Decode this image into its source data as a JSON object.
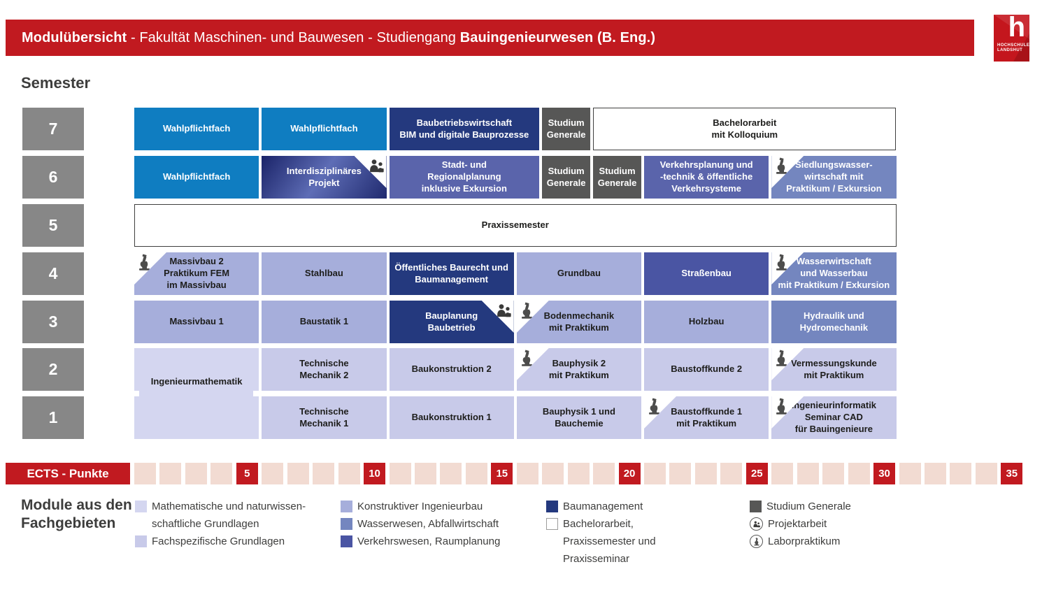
{
  "header": {
    "title_prefix": "Modulübersicht",
    "title_middle": " - Fakultät Maschinen- und Bauwesen - Studiengang ",
    "title_suffix": "Bauingenieurwesen (B. Eng.)"
  },
  "logo": {
    "letter": "h",
    "text": "HOCHSCHULE\nLANDSHUT"
  },
  "semester_heading": "Semester",
  "semesters": [
    7,
    6,
    5,
    4,
    3,
    2,
    1
  ],
  "colors": {
    "red": "#c11a20",
    "pink": "#f2dbd2",
    "semester_gray": "#878787",
    "studium": "#575756",
    "wahlpflicht": "#0f7dc1",
    "baumanagement": "#24397e",
    "raumplanung": "#5a64ab",
    "verkehr": "#4a55a3",
    "wasser": "#7486bf",
    "konstruktiv": "#a6aedb",
    "fachspez": "#c8cae9",
    "mathe": "#d4d6f0",
    "projekt_gradient": "linear-gradient(125deg, #1a2368 0%, #5e6db6 48%, #202a6f 100%)",
    "whitebox_border": "#3f3f3e",
    "text_dark": "#1d1d1b",
    "icon_gray": "#4d4d4c"
  },
  "modules": [
    {
      "sem": 7,
      "start": 0,
      "span": 5,
      "cat": "wahlpflicht",
      "label": "Wahlpflichtfach"
    },
    {
      "sem": 7,
      "start": 5,
      "span": 5,
      "cat": "wahlpflicht",
      "label": "Wahlpflichtfach"
    },
    {
      "sem": 7,
      "start": 10,
      "span": 6,
      "cat": "baumanagement",
      "label": "Baubetriebswirtschaft\nBIM und digitale Bauprozesse"
    },
    {
      "sem": 7,
      "start": 16,
      "span": 2,
      "cat": "studium",
      "label": "Studium\nGenerale"
    },
    {
      "sem": 7,
      "start": 18,
      "span": 12,
      "cat": "whitebox",
      "label": "Bachelorarbeit\nmit Kolloquium"
    },
    {
      "sem": 6,
      "start": 0,
      "span": 5,
      "cat": "wahlpflicht",
      "label": "Wahlpflichtfach"
    },
    {
      "sem": 6,
      "start": 5,
      "span": 5,
      "cat": "projekt",
      "label": "Interdisziplinäres\nProjekt",
      "icon": "project",
      "icon_pos": "right"
    },
    {
      "sem": 6,
      "start": 10,
      "span": 6,
      "cat": "raumplanung",
      "label": "Stadt- und\nRegionalplanung\ninklusive Exkursion"
    },
    {
      "sem": 6,
      "start": 16,
      "span": 2,
      "cat": "studium",
      "label": "Studium\nGenerale"
    },
    {
      "sem": 6,
      "start": 18,
      "span": 2,
      "cat": "studium",
      "label": "Studium\nGenerale"
    },
    {
      "sem": 6,
      "start": 20,
      "span": 5,
      "cat": "raumplanung",
      "label": "Verkehrsplanung und\n-technik & öffentliche\nVerkehrsysteme"
    },
    {
      "sem": 6,
      "start": 25,
      "span": 5,
      "cat": "wasser",
      "label": "Siedlungswasser-\nwirtschaft mit\nPraktikum / Exkursion",
      "icon": "lab",
      "icon_pos": "left"
    },
    {
      "sem": 5,
      "start": 0,
      "span": 30,
      "cat": "whitebox",
      "label": "Praxissemester"
    },
    {
      "sem": 4,
      "start": 0,
      "span": 5,
      "cat": "konstruktiv",
      "label": "Massivbau 2\nPraktikum FEM\nim Massivbau",
      "icon": "lab",
      "icon_pos": "left"
    },
    {
      "sem": 4,
      "start": 5,
      "span": 5,
      "cat": "konstruktiv",
      "label": "Stahlbau"
    },
    {
      "sem": 4,
      "start": 10,
      "span": 5,
      "cat": "baumanagement",
      "label": "Öffentliches Baurecht und\nBaumanagement"
    },
    {
      "sem": 4,
      "start": 15,
      "span": 5,
      "cat": "konstruktiv",
      "label": "Grundbau"
    },
    {
      "sem": 4,
      "start": 20,
      "span": 5,
      "cat": "verkehr",
      "label": "Straßenbau"
    },
    {
      "sem": 4,
      "start": 25,
      "span": 5,
      "cat": "wasser",
      "label": "Wasserwirtschaft\nund Wasserbau\nmit Praktikum / Exkursion",
      "icon": "lab",
      "icon_pos": "left"
    },
    {
      "sem": 3,
      "start": 0,
      "span": 5,
      "cat": "konstruktiv",
      "label": "Massivbau 1"
    },
    {
      "sem": 3,
      "start": 5,
      "span": 5,
      "cat": "konstruktiv",
      "label": "Baustatik 1"
    },
    {
      "sem": 3,
      "start": 10,
      "span": 5,
      "cat": "baumanagement",
      "label": "Bauplanung\nBaubetrieb",
      "icon": "project",
      "icon_pos": "right"
    },
    {
      "sem": 3,
      "start": 15,
      "span": 5,
      "cat": "konstruktiv",
      "label": "Bodenmechanik\nmit Praktikum",
      "icon": "lab",
      "icon_pos": "left"
    },
    {
      "sem": 3,
      "start": 20,
      "span": 5,
      "cat": "konstruktiv",
      "label": "Holzbau"
    },
    {
      "sem": 3,
      "start": 25,
      "span": 5,
      "cat": "wasser",
      "label": "Hydraulik und\nHydromechanik"
    },
    {
      "sem": 2,
      "start": 0,
      "span": 5,
      "cat": "mathe",
      "label": "Ingenieurmathematik",
      "rows": 2
    },
    {
      "sem": 2,
      "start": 5,
      "span": 5,
      "cat": "fachspez",
      "label": "Technische\nMechanik 2"
    },
    {
      "sem": 2,
      "start": 10,
      "span": 5,
      "cat": "fachspez",
      "label": "Baukonstruktion 2"
    },
    {
      "sem": 2,
      "start": 15,
      "span": 5,
      "cat": "fachspez",
      "label": "Bauphysik 2\nmit Praktikum",
      "icon": "lab",
      "icon_pos": "left"
    },
    {
      "sem": 2,
      "start": 20,
      "span": 5,
      "cat": "fachspez",
      "label": "Baustoffkunde 2"
    },
    {
      "sem": 2,
      "start": 25,
      "span": 5,
      "cat": "fachspez",
      "label": "Vermessungskunde\nmit Praktikum",
      "icon": "lab",
      "icon_pos": "left"
    },
    {
      "sem": 1,
      "start": 5,
      "span": 5,
      "cat": "fachspez",
      "label": "Technische\nMechanik 1"
    },
    {
      "sem": 1,
      "start": 10,
      "span": 5,
      "cat": "fachspez",
      "label": "Baukonstruktion 1"
    },
    {
      "sem": 1,
      "start": 15,
      "span": 5,
      "cat": "fachspez",
      "label": "Bauphysik 1 und\nBauchemie"
    },
    {
      "sem": 1,
      "start": 20,
      "span": 5,
      "cat": "fachspez",
      "label": "Baustoffkunde 1\nmit Praktikum",
      "icon": "lab",
      "icon_pos": "left"
    },
    {
      "sem": 1,
      "start": 25,
      "span": 5,
      "cat": "fachspez",
      "label": "Ingenieurinformatik\nSeminar CAD\nfür Bauingenieure",
      "icon": "lab",
      "icon_pos": "left"
    }
  ],
  "ects": {
    "label": "ECTS - Punkte",
    "count": 35,
    "milestones": [
      5,
      10,
      15,
      20,
      25,
      30,
      35
    ]
  },
  "legend": {
    "title": "Module aus den\nFachgebieten",
    "items": [
      {
        "col": 1,
        "swatch": "mathe",
        "label": "Mathematische und naturwissen-\nschaftliche Grundlagen"
      },
      {
        "col": 1,
        "swatch": "fachspez",
        "label": "Fachspezifische Grundlagen"
      },
      {
        "col": 2,
        "swatch": "konstruktiv",
        "label": "Konstruktiver Ingenieurbau"
      },
      {
        "col": 2,
        "swatch": "wasser",
        "label": "Wasserwesen, Abfallwirtschaft"
      },
      {
        "col": 2,
        "swatch": "verkehr",
        "label": "Verkehrswesen, Raumplanung"
      },
      {
        "col": 3,
        "swatch": "baumanagement",
        "label": "Baumanagement"
      },
      {
        "col": 3,
        "swatch": "whitebox",
        "label": "Bachelorarbeit,\nPraxissemester und\nPraxisseminar"
      },
      {
        "col": 4,
        "swatch": "studium",
        "label": "Studium Generale"
      },
      {
        "col": 4,
        "icon": "project",
        "label": "Projektarbeit"
      },
      {
        "col": 4,
        "icon": "lab",
        "label": "Laborpraktikum"
      }
    ]
  }
}
